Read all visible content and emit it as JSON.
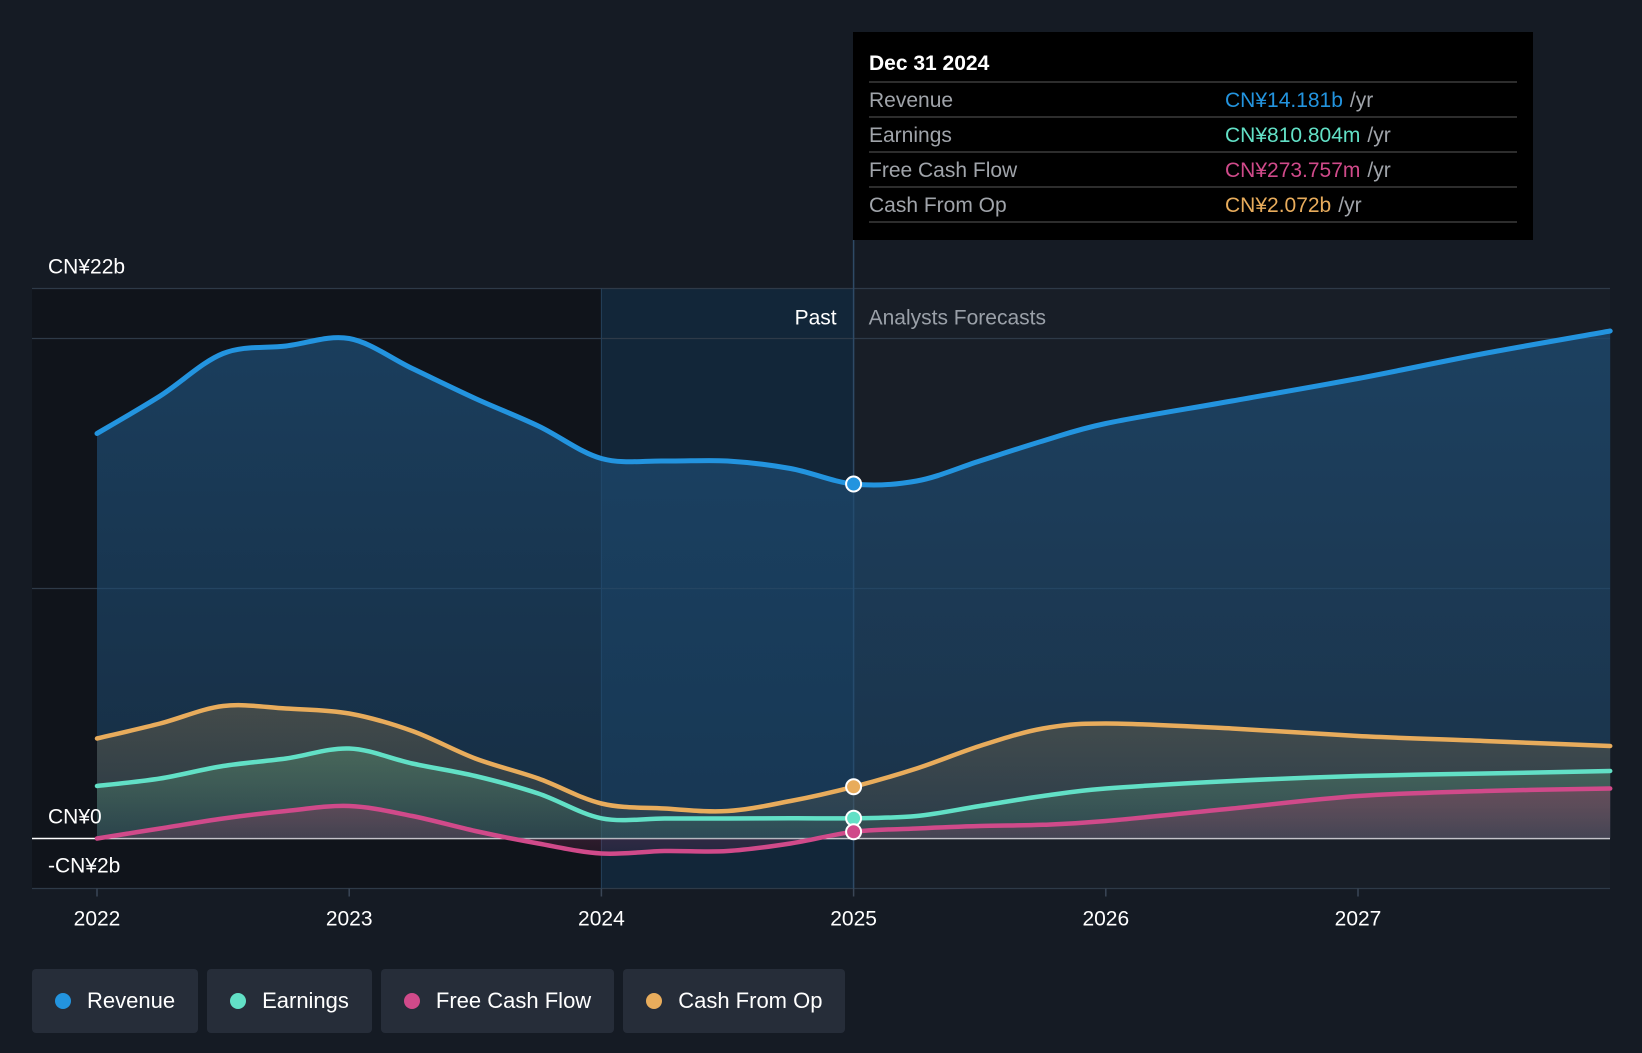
{
  "chart_data": {
    "type": "area",
    "x_ticks": [
      "2022",
      "2023",
      "2024",
      "2025",
      "2026",
      "2027"
    ],
    "y_labels": {
      "top": "CN¥22b",
      "zero": "CN¥0",
      "bottom": "-CN¥2b"
    },
    "ylim": [
      -2,
      22
    ],
    "past_label": "Past",
    "forecast_label": "Analysts Forecasts",
    "past_end": 2025.0,
    "past_highlight_start": 2024.0,
    "series": [
      {
        "name": "Revenue",
        "color": "#2394df",
        "points": [
          [
            2022.0,
            16.2
          ],
          [
            2022.25,
            17.7
          ],
          [
            2022.5,
            19.4
          ],
          [
            2022.75,
            19.7
          ],
          [
            2023.0,
            20.0
          ],
          [
            2023.25,
            18.8
          ],
          [
            2023.5,
            17.6
          ],
          [
            2023.75,
            16.5
          ],
          [
            2024.0,
            15.2
          ],
          [
            2024.25,
            15.1
          ],
          [
            2024.5,
            15.1
          ],
          [
            2024.75,
            14.8
          ],
          [
            2025.0,
            14.18
          ],
          [
            2025.25,
            14.3
          ],
          [
            2025.5,
            15.1
          ],
          [
            2025.75,
            15.9
          ],
          [
            2026.0,
            16.6
          ],
          [
            2026.5,
            17.5
          ],
          [
            2027.0,
            18.4
          ],
          [
            2027.5,
            19.4
          ],
          [
            2028.0,
            20.3
          ]
        ]
      },
      {
        "name": "Earnings",
        "color": "#62e0c6",
        "points": [
          [
            2022.0,
            2.1
          ],
          [
            2022.25,
            2.4
          ],
          [
            2022.5,
            2.9
          ],
          [
            2022.75,
            3.2
          ],
          [
            2023.0,
            3.6
          ],
          [
            2023.25,
            3.0
          ],
          [
            2023.5,
            2.5
          ],
          [
            2023.75,
            1.8
          ],
          [
            2024.0,
            0.81
          ],
          [
            2024.25,
            0.8
          ],
          [
            2024.5,
            0.8
          ],
          [
            2024.75,
            0.81
          ],
          [
            2025.0,
            0.81
          ],
          [
            2025.25,
            0.9
          ],
          [
            2025.5,
            1.3
          ],
          [
            2025.75,
            1.7
          ],
          [
            2026.0,
            2.0
          ],
          [
            2026.5,
            2.3
          ],
          [
            2027.0,
            2.5
          ],
          [
            2027.5,
            2.6
          ],
          [
            2028.0,
            2.7
          ]
        ]
      },
      {
        "name": "Free Cash Flow",
        "color": "#d04a8a",
        "points": [
          [
            2022.0,
            0.0
          ],
          [
            2022.25,
            0.4
          ],
          [
            2022.5,
            0.8
          ],
          [
            2022.75,
            1.1
          ],
          [
            2023.0,
            1.3
          ],
          [
            2023.25,
            0.9
          ],
          [
            2023.5,
            0.3
          ],
          [
            2023.75,
            -0.2
          ],
          [
            2024.0,
            -0.6
          ],
          [
            2024.25,
            -0.5
          ],
          [
            2024.5,
            -0.5
          ],
          [
            2024.75,
            -0.2
          ],
          [
            2025.0,
            0.27
          ],
          [
            2025.25,
            0.4
          ],
          [
            2025.5,
            0.5
          ],
          [
            2025.75,
            0.55
          ],
          [
            2026.0,
            0.7
          ],
          [
            2026.5,
            1.2
          ],
          [
            2027.0,
            1.7
          ],
          [
            2027.5,
            1.9
          ],
          [
            2028.0,
            2.0
          ]
        ]
      },
      {
        "name": "Cash From Op",
        "color": "#e8ac5c",
        "points": [
          [
            2022.0,
            4.0
          ],
          [
            2022.25,
            4.6
          ],
          [
            2022.5,
            5.3
          ],
          [
            2022.75,
            5.2
          ],
          [
            2023.0,
            5.0
          ],
          [
            2023.25,
            4.3
          ],
          [
            2023.5,
            3.2
          ],
          [
            2023.75,
            2.4
          ],
          [
            2024.0,
            1.4
          ],
          [
            2024.25,
            1.2
          ],
          [
            2024.5,
            1.1
          ],
          [
            2024.75,
            1.5
          ],
          [
            2025.0,
            2.07
          ],
          [
            2025.25,
            2.8
          ],
          [
            2025.5,
            3.7
          ],
          [
            2025.75,
            4.4
          ],
          [
            2026.0,
            4.6
          ],
          [
            2026.5,
            4.4
          ],
          [
            2027.0,
            4.1
          ],
          [
            2027.5,
            3.9
          ],
          [
            2028.0,
            3.7
          ]
        ]
      }
    ]
  },
  "tooltip": {
    "date": "Dec 31 2024",
    "rows": [
      {
        "label": "Revenue",
        "value": "CN¥14.181b",
        "unit": "/yr",
        "color": "#2394df"
      },
      {
        "label": "Earnings",
        "value": "CN¥810.804m",
        "unit": "/yr",
        "color": "#62e0c6"
      },
      {
        "label": "Free Cash Flow",
        "value": "CN¥273.757m",
        "unit": "/yr",
        "color": "#d04a8a"
      },
      {
        "label": "Cash From Op",
        "value": "CN¥2.072b",
        "unit": "/yr",
        "color": "#e8ac5c"
      }
    ]
  },
  "legend": [
    {
      "label": "Revenue",
      "color": "#2394df"
    },
    {
      "label": "Earnings",
      "color": "#62e0c6"
    },
    {
      "label": "Free Cash Flow",
      "color": "#d04a8a"
    },
    {
      "label": "Cash From Op",
      "color": "#e8ac5c"
    }
  ]
}
